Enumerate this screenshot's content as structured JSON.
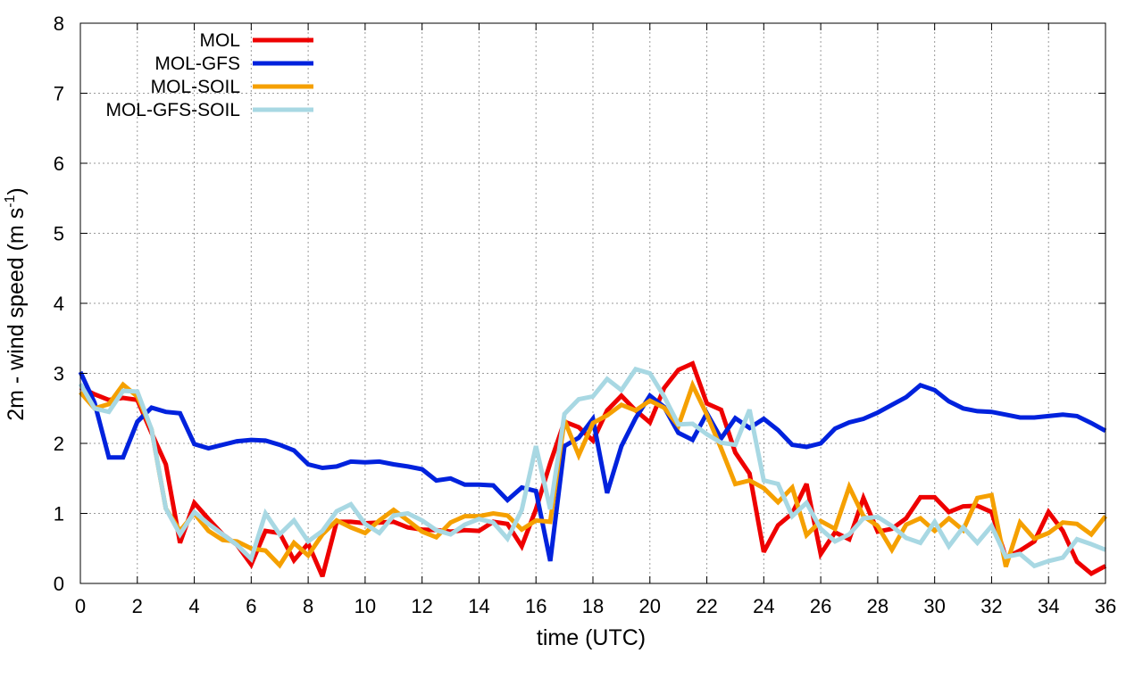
{
  "chart_data": {
    "type": "line",
    "xlabel": "time (UTC)",
    "ylabel": {
      "text": "2m - wind speed  (m s",
      "exponent": "-1",
      "close": ")"
    },
    "xlim": [
      0,
      36
    ],
    "ylim": [
      0,
      8
    ],
    "xticks": [
      0,
      2,
      4,
      6,
      8,
      10,
      12,
      14,
      16,
      18,
      20,
      22,
      24,
      26,
      28,
      30,
      32,
      34,
      36
    ],
    "yticks": [
      0,
      1,
      2,
      3,
      4,
      5,
      6,
      7,
      8
    ],
    "grid": true,
    "legend_position": "top-left",
    "x": [
      0,
      0.5,
      1,
      1.5,
      2,
      2.5,
      3,
      3.5,
      4,
      4.5,
      5,
      5.5,
      6,
      6.5,
      7,
      7.5,
      8,
      8.5,
      9,
      9.5,
      10,
      10.5,
      11,
      11.5,
      12,
      12.5,
      13,
      13.5,
      14,
      14.5,
      15,
      15.5,
      16,
      16.5,
      17,
      17.5,
      18,
      18.5,
      19,
      19.5,
      20,
      20.5,
      21,
      21.5,
      22,
      22.5,
      23,
      23.5,
      24,
      24.5,
      25,
      25.5,
      26,
      26.5,
      27,
      27.5,
      28,
      28.5,
      29,
      29.5,
      30,
      30.5,
      31,
      31.5,
      32,
      32.5,
      33,
      33.5,
      34,
      34.5,
      35,
      35.5,
      36
    ],
    "series": [
      {
        "name": "MOL",
        "color": "#ee0000",
        "values": [
          2.8,
          2.7,
          2.62,
          2.65,
          2.62,
          2.15,
          1.7,
          0.58,
          1.15,
          0.92,
          0.7,
          0.55,
          0.27,
          0.75,
          0.72,
          0.33,
          0.57,
          0.1,
          0.88,
          0.88,
          0.86,
          0.87,
          0.88,
          0.8,
          0.77,
          0.76,
          0.74,
          0.76,
          0.75,
          0.88,
          0.85,
          0.53,
          1.06,
          1.72,
          2.31,
          2.23,
          2.04,
          2.47,
          2.68,
          2.47,
          2.3,
          2.79,
          3.05,
          3.14,
          2.57,
          2.48,
          1.87,
          1.57,
          0.45,
          0.83,
          1.0,
          1.42,
          0.42,
          0.73,
          0.63,
          1.22,
          0.74,
          0.78,
          0.93,
          1.23,
          1.23,
          1.02,
          1.1,
          1.11,
          1.02,
          0.37,
          0.47,
          0.6,
          1.02,
          0.75,
          0.31,
          0.14,
          0.25
        ]
      },
      {
        "name": "MOL-GFS",
        "color": "#0022dd",
        "values": [
          3.02,
          2.58,
          1.8,
          1.8,
          2.31,
          2.51,
          2.45,
          2.43,
          1.99,
          1.93,
          1.98,
          2.03,
          2.05,
          2.04,
          1.98,
          1.9,
          1.7,
          1.65,
          1.67,
          1.74,
          1.73,
          1.74,
          1.7,
          1.67,
          1.63,
          1.47,
          1.5,
          1.41,
          1.41,
          1.4,
          1.19,
          1.37,
          1.32,
          0.32,
          1.96,
          2.08,
          2.35,
          1.29,
          1.96,
          2.36,
          2.68,
          2.52,
          2.15,
          2.05,
          2.43,
          2.07,
          2.36,
          2.22,
          2.35,
          2.19,
          1.98,
          1.95,
          2.0,
          2.21,
          2.3,
          2.35,
          2.44,
          2.55,
          2.66,
          2.83,
          2.76,
          2.6,
          2.5,
          2.46,
          2.45,
          2.41,
          2.37,
          2.37,
          2.39,
          2.41,
          2.39,
          2.29,
          2.18
        ]
      },
      {
        "name": "MOL-SOIL",
        "color": "#f5a000",
        "values": [
          2.73,
          2.5,
          2.56,
          2.84,
          2.67,
          2.2,
          1.07,
          0.75,
          1.0,
          0.75,
          0.62,
          0.6,
          0.5,
          0.47,
          0.26,
          0.58,
          0.4,
          0.7,
          0.9,
          0.8,
          0.72,
          0.9,
          1.05,
          0.9,
          0.74,
          0.66,
          0.87,
          0.96,
          0.96,
          1.0,
          0.97,
          0.77,
          0.9,
          0.88,
          2.33,
          1.83,
          2.29,
          2.4,
          2.55,
          2.47,
          2.61,
          2.51,
          2.25,
          2.83,
          2.41,
          1.93,
          1.42,
          1.47,
          1.36,
          1.16,
          1.37,
          0.69,
          0.89,
          0.78,
          1.38,
          0.96,
          0.82,
          0.48,
          0.84,
          0.93,
          0.75,
          0.93,
          0.76,
          1.22,
          1.26,
          0.24,
          0.87,
          0.64,
          0.72,
          0.87,
          0.85,
          0.7,
          0.96
        ]
      },
      {
        "name": "MOL-GFS-SOIL",
        "color": "#a8d8e3",
        "values": [
          2.85,
          2.5,
          2.45,
          2.75,
          2.74,
          2.2,
          1.07,
          0.7,
          1.02,
          0.85,
          0.7,
          0.55,
          0.35,
          1.0,
          0.7,
          0.9,
          0.6,
          0.75,
          1.03,
          1.13,
          0.85,
          0.72,
          0.97,
          1.0,
          0.9,
          0.76,
          0.7,
          0.84,
          0.92,
          0.87,
          0.64,
          1.05,
          1.96,
          1.06,
          2.42,
          2.63,
          2.67,
          2.92,
          2.76,
          3.06,
          3.0,
          2.67,
          2.27,
          2.28,
          2.13,
          2.01,
          1.98,
          2.48,
          1.47,
          1.42,
          0.96,
          1.15,
          0.78,
          0.6,
          0.7,
          0.93,
          0.95,
          0.82,
          0.65,
          0.58,
          0.88,
          0.53,
          0.8,
          0.58,
          0.82,
          0.38,
          0.42,
          0.25,
          0.32,
          0.37,
          0.63,
          0.56,
          0.48
        ]
      }
    ]
  }
}
